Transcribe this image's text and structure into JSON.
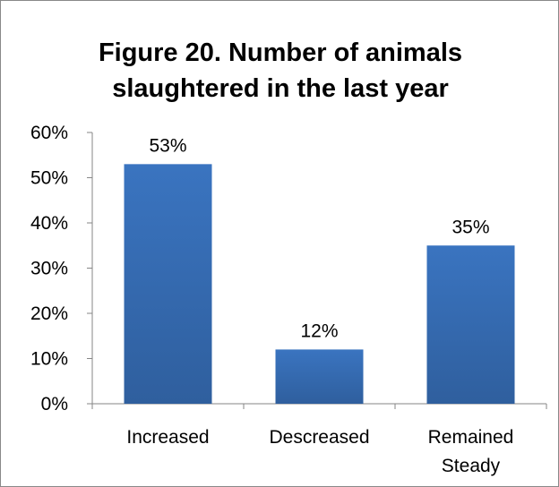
{
  "chart_data": {
    "type": "bar",
    "title_lines": [
      "Figure 20. Number of animals",
      "slaughtered in the last year"
    ],
    "categories": [
      [
        "Increased"
      ],
      [
        "Descreased"
      ],
      [
        "Remained",
        "Steady"
      ]
    ],
    "values": [
      53,
      12,
      35
    ],
    "data_labels": [
      "53%",
      "12%",
      "35%"
    ],
    "ylim": [
      0,
      60
    ],
    "yticks": [
      0,
      10,
      20,
      30,
      40,
      50,
      60
    ],
    "ytick_labels": [
      "0%",
      "10%",
      "20%",
      "30%",
      "40%",
      "50%",
      "60%"
    ],
    "grid": false,
    "bar_color": "#3a74c0",
    "bar_color_dark": "#2f5f9e"
  }
}
